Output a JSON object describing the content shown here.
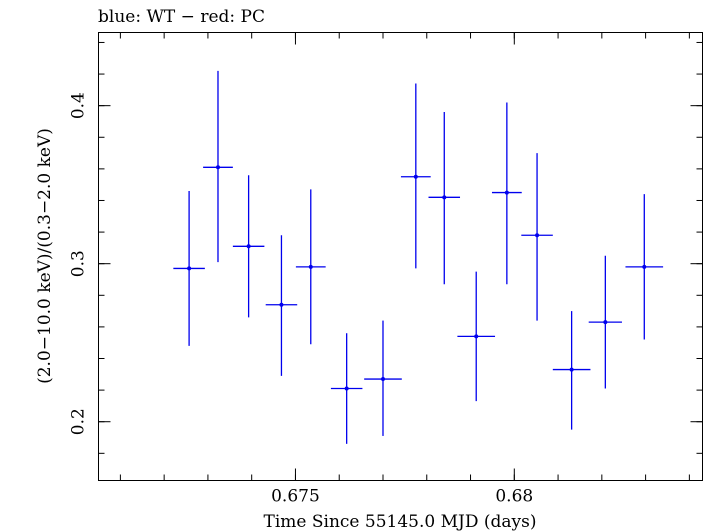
{
  "chart_data": {
    "type": "scatter",
    "title": "blue: WT − red: PC",
    "xlabel": "Time Since 55145.0 MJD (days)",
    "ylabel": "(2.0−10.0 keV)/(0.3−2.0 keV)",
    "xlim": [
      0.6705,
      0.6843
    ],
    "ylim": [
      0.1628,
      0.4463
    ],
    "grid": false,
    "x_ticks": [
      0.675,
      0.68
    ],
    "x_tick_labels": [
      "0.675",
      "0.68"
    ],
    "y_ticks": [
      0.2,
      0.3,
      0.4
    ],
    "y_tick_labels": [
      "0.2",
      "0.3",
      "0.4"
    ],
    "series": [
      {
        "color": "#0000ee",
        "points": [
          {
            "x": 0.67257,
            "y": 0.297,
            "xerr": 0.00036,
            "ylo": 0.248,
            "yhi": 0.346
          },
          {
            "x": 0.67323,
            "y": 0.361,
            "xerr": 0.00034,
            "ylo": 0.301,
            "yhi": 0.422
          },
          {
            "x": 0.67393,
            "y": 0.311,
            "xerr": 0.00036,
            "ylo": 0.266,
            "yhi": 0.356
          },
          {
            "x": 0.67468,
            "y": 0.274,
            "xerr": 0.00036,
            "ylo": 0.229,
            "yhi": 0.318
          },
          {
            "x": 0.67535,
            "y": 0.298,
            "xerr": 0.00034,
            "ylo": 0.249,
            "yhi": 0.347
          },
          {
            "x": 0.67617,
            "y": 0.221,
            "xerr": 0.00036,
            "ylo": 0.186,
            "yhi": 0.256
          },
          {
            "x": 0.677,
            "y": 0.227,
            "xerr": 0.00043,
            "ylo": 0.191,
            "yhi": 0.264
          },
          {
            "x": 0.67775,
            "y": 0.355,
            "xerr": 0.00034,
            "ylo": 0.297,
            "yhi": 0.414
          },
          {
            "x": 0.6784,
            "y": 0.342,
            "xerr": 0.00036,
            "ylo": 0.287,
            "yhi": 0.396
          },
          {
            "x": 0.67913,
            "y": 0.254,
            "xerr": 0.00043,
            "ylo": 0.213,
            "yhi": 0.295
          },
          {
            "x": 0.67983,
            "y": 0.345,
            "xerr": 0.00034,
            "ylo": 0.287,
            "yhi": 0.402
          },
          {
            "x": 0.68052,
            "y": 0.318,
            "xerr": 0.00036,
            "ylo": 0.264,
            "yhi": 0.37
          },
          {
            "x": 0.68131,
            "y": 0.233,
            "xerr": 0.00043,
            "ylo": 0.195,
            "yhi": 0.27
          },
          {
            "x": 0.68208,
            "y": 0.263,
            "xerr": 0.00038,
            "ylo": 0.221,
            "yhi": 0.305
          },
          {
            "x": 0.68297,
            "y": 0.298,
            "xerr": 0.00043,
            "ylo": 0.252,
            "yhi": 0.344
          }
        ]
      }
    ]
  }
}
